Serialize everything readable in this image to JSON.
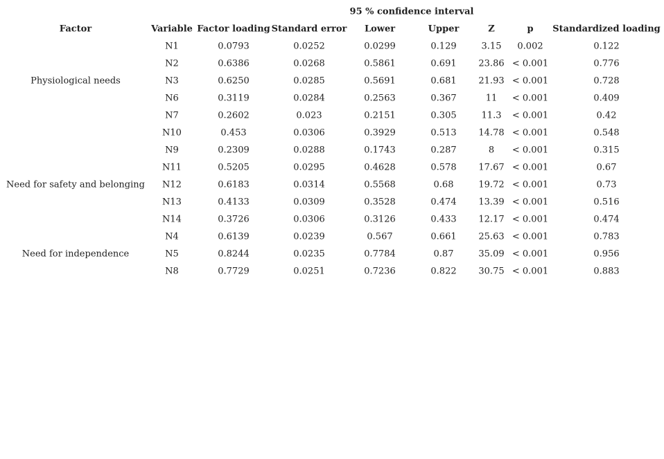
{
  "table": {
    "group_header": "95 % confidence interval",
    "columns": [
      "Factor",
      "Variable",
      "Factor loading",
      "Standard error",
      "Lower",
      "Upper",
      "Z",
      "p",
      "Standardized loading"
    ],
    "groups": [
      {
        "factor": "Physiological needs",
        "rows": [
          [
            "N1",
            "0.0793",
            "0.0252",
            "0.0299",
            "0.129",
            "3.15",
            "0.002",
            "0.122"
          ],
          [
            "N2",
            "0.6386",
            "0.0268",
            "0.5861",
            "0.691",
            "23.86",
            "< 0.001",
            "0.776"
          ],
          [
            "N3",
            "0.6250",
            "0.0285",
            "0.5691",
            "0.681",
            "21.93",
            "< 0.001",
            "0.728"
          ],
          [
            "N6",
            "0.3119",
            "0.0284",
            "0.2563",
            "0.367",
            "11",
            "< 0.001",
            "0.409"
          ],
          [
            "N7",
            "0.2602",
            "0.023",
            "0.2151",
            "0.305",
            "11.3",
            "< 0.001",
            "0.42"
          ],
          [
            "N10",
            "0.453",
            "0.0306",
            "0.3929",
            "0.513",
            "14.78",
            "< 0.001",
            "0.548"
          ]
        ]
      },
      {
        "factor": "Need for safety and belonging",
        "rows": [
          [
            "N9",
            "0.2309",
            "0.0288",
            "0.1743",
            "0.287",
            "8",
            "< 0.001",
            "0.315"
          ],
          [
            "N11",
            "0.5205",
            "0.0295",
            "0.4628",
            "0.578",
            "17.67",
            "< 0.001",
            "0.67"
          ],
          [
            "N12",
            "0.6183",
            "0.0314",
            "0.5568",
            "0.68",
            "19.72",
            "< 0.001",
            "0.73"
          ],
          [
            "N13",
            "0.4133",
            "0.0309",
            "0.3528",
            "0.474",
            "13.39",
            "< 0.001",
            "0.516"
          ],
          [
            "N14",
            "0.3726",
            "0.0306",
            "0.3126",
            "0.433",
            "12.17",
            "< 0.001",
            "0.474"
          ]
        ]
      },
      {
        "factor": "Need for independence",
        "rows": [
          [
            "N4",
            "0.6139",
            "0.0239",
            "0.567",
            "0.661",
            "25.63",
            "< 0.001",
            "0.783"
          ],
          [
            "N5",
            "0.8244",
            "0.0235",
            "0.7784",
            "0.87",
            "35.09",
            "< 0.001",
            "0.956"
          ],
          [
            "N8",
            "0.7729",
            "0.0251",
            "0.7236",
            "0.822",
            "30.75",
            "< 0.001",
            "0.883"
          ]
        ]
      }
    ]
  }
}
